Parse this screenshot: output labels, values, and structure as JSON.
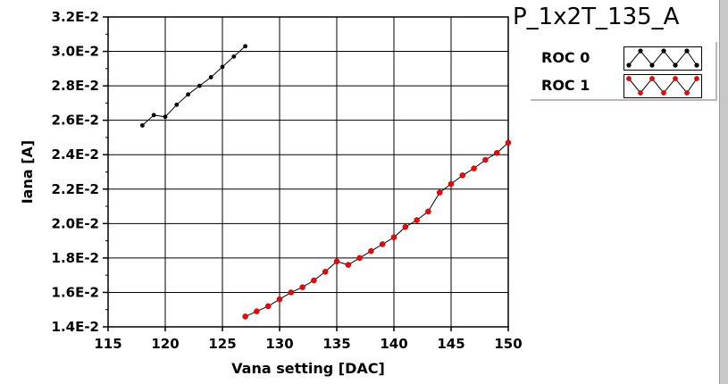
{
  "chart_data": {
    "type": "scatter",
    "title": "P_1x2T_135_A",
    "xlabel": "Vana setting [DAC]",
    "ylabel": "Iana [A]",
    "xlim": [
      115,
      150
    ],
    "ylim": [
      0.014,
      0.032
    ],
    "x_ticks": [
      115,
      120,
      125,
      130,
      135,
      140,
      145,
      150
    ],
    "x_tick_labels": [
      "115",
      "120",
      "125",
      "130",
      "135",
      "140",
      "145",
      "150"
    ],
    "y_ticks": [
      0.014,
      0.016,
      0.018,
      0.02,
      0.022,
      0.024,
      0.026,
      0.028,
      0.03,
      0.032
    ],
    "y_tick_labels": [
      "1.4E-2",
      "1.6E-2",
      "1.8E-2",
      "2.0E-2",
      "2.2E-2",
      "2.4E-2",
      "2.6E-2",
      "2.8E-2",
      "3.0E-2",
      "3.2E-2"
    ],
    "grid": true,
    "legend_position": "top-right",
    "series": [
      {
        "name": "ROC 0",
        "color": "#000000",
        "marker_color": "#000000",
        "x": [
          118,
          119,
          120,
          121,
          122,
          123,
          124,
          125,
          126,
          127
        ],
        "y": [
          0.0257,
          0.0263,
          0.0262,
          0.0269,
          0.0275,
          0.028,
          0.0285,
          0.0291,
          0.0297,
          0.0303
        ]
      },
      {
        "name": "ROC 1",
        "color": "#000000",
        "marker_color": "#ff0000",
        "x": [
          127,
          128,
          129,
          130,
          131,
          132,
          133,
          134,
          135,
          136,
          137,
          138,
          139,
          140,
          141,
          142,
          143,
          144,
          145,
          146,
          147,
          148,
          149,
          150
        ],
        "y": [
          0.0146,
          0.0149,
          0.0152,
          0.0156,
          0.016,
          0.0163,
          0.0167,
          0.0172,
          0.0178,
          0.0176,
          0.018,
          0.0184,
          0.0188,
          0.0192,
          0.0198,
          0.0202,
          0.0207,
          0.0218,
          0.0223,
          0.0228,
          0.0232,
          0.0237,
          0.0241,
          0.0247
        ]
      }
    ]
  }
}
